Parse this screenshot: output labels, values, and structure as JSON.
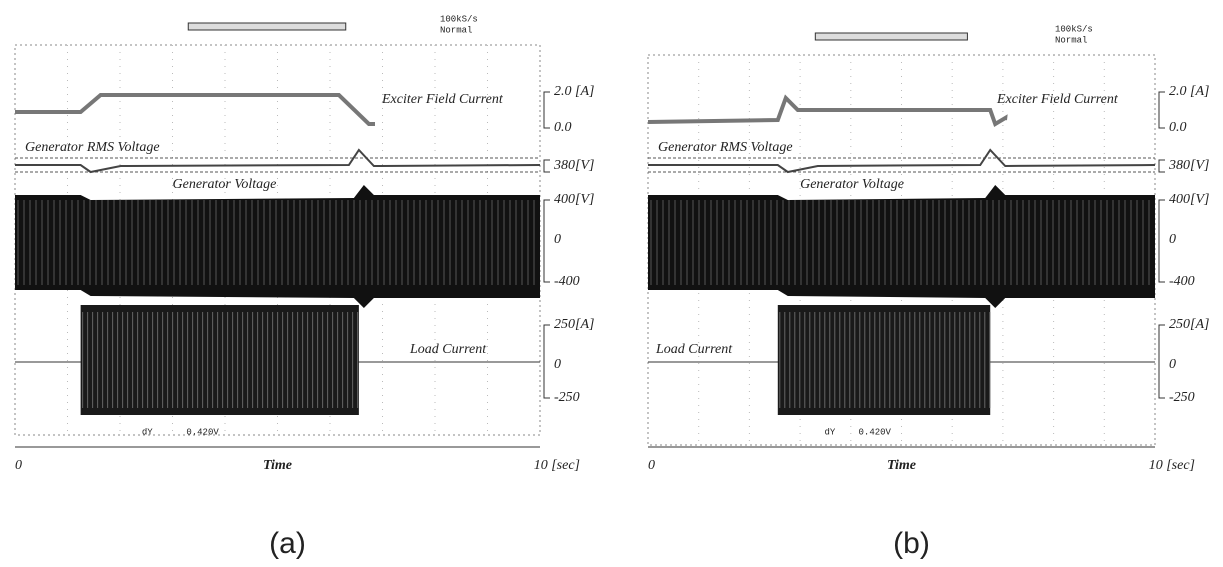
{
  "panels": [
    {
      "header": {
        "rate": "100kS/s",
        "mode": "Normal"
      },
      "traces": [
        "Exciter Field Current",
        "Generator RMS Voltage",
        "Generator Voltage",
        "Load Current"
      ],
      "scale": [
        "2.0 [A]",
        "0.0",
        "380[V]",
        "400[V]",
        "0",
        "-400",
        "250[A]",
        "0",
        "-250"
      ],
      "cursor": {
        "label": "dY",
        "value": "0.420V"
      },
      "x_axis": {
        "start": "0",
        "title": "Time",
        "end": "10 [sec]"
      },
      "caption": "(a)"
    },
    {
      "header": {
        "rate": "100kS/s",
        "mode": "Normal"
      },
      "traces": [
        "Exciter Field Current",
        "Generator RMS Voltage",
        "Generator Voltage",
        "Load Current"
      ],
      "scale": [
        "2.0 [A]",
        "0.0",
        "380[V]",
        "400[V]",
        "0",
        "-400",
        "250[A]",
        "0",
        "-250"
      ],
      "cursor": {
        "label": "dY",
        "value": "0.420V"
      },
      "x_axis": {
        "start": "0",
        "title": "Time",
        "end": "10 [sec]"
      },
      "caption": "(b)"
    }
  ]
}
